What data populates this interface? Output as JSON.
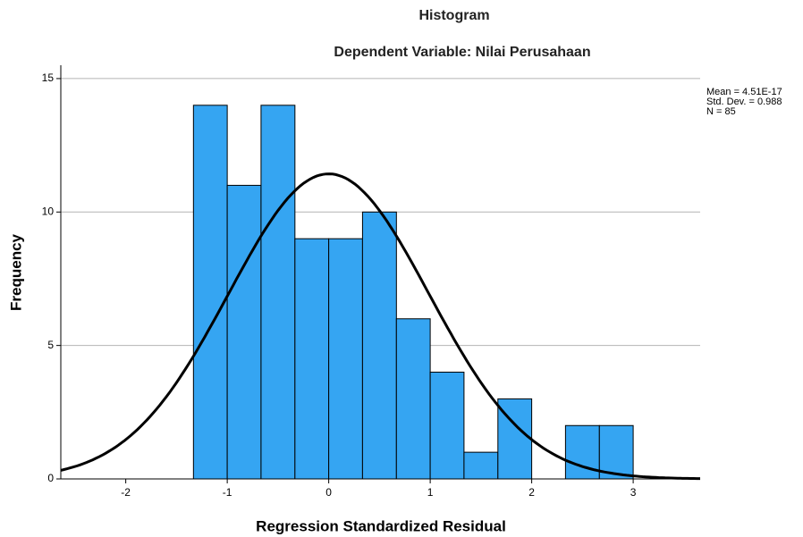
{
  "chart_data": {
    "type": "histogram",
    "title": "Histogram",
    "subtitle": "Dependent Variable: Nilai Perusahaan",
    "x_label": "Regression Standardized Residual",
    "y_label": "Frequency",
    "bins": [
      -1.333,
      -1,
      -0.667,
      -0.333,
      0,
      0.333,
      0.667,
      1,
      1.333,
      1.667,
      2,
      2.333,
      2.667,
      3
    ],
    "counts": [
      14,
      11,
      14,
      9,
      9,
      10,
      6,
      4,
      1,
      3,
      0,
      2,
      2
    ],
    "color": "#35a5f2",
    "xlim": [
      -2.64,
      3.66
    ],
    "xticks": [
      -2,
      -1,
      0,
      1,
      2,
      3
    ],
    "ylim": [
      0,
      15.5
    ],
    "yticks": [
      0,
      5,
      10,
      15
    ],
    "grid": true,
    "annotations": [
      "Mean = 4.51E-17",
      "Std. Dev. = 0.988",
      "N = 85"
    ],
    "normal_curve": {
      "mean": 4.51e-17,
      "std": 0.988,
      "n": 85
    }
  }
}
